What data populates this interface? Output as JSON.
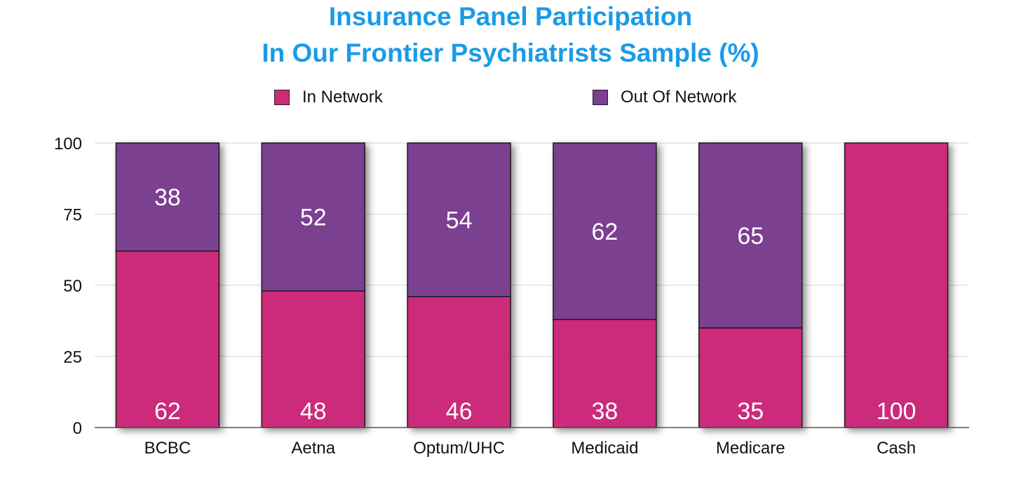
{
  "chart_data": {
    "type": "bar",
    "stacked": true,
    "title": "Insurance Panel Participation",
    "subtitle": "In Our Frontier Psychiatrists Sample (%)",
    "categories": [
      "BCBC",
      "Aetna",
      "Optum/UHC",
      "Medicaid",
      "Medicare",
      "Cash"
    ],
    "series": [
      {
        "name": "In Network",
        "color": "#cc2b7a",
        "values": [
          62,
          48,
          46,
          38,
          35,
          100
        ]
      },
      {
        "name": "Out Of Network",
        "color": "#7b3f90",
        "values": [
          38,
          52,
          54,
          62,
          65,
          0
        ]
      }
    ],
    "y_ticks": [
      "0",
      "25",
      "50",
      "75",
      "100"
    ],
    "ylim": [
      0,
      100
    ],
    "grid": true,
    "legend_position": "top",
    "title_color": "#1a9be6",
    "data_labels": {
      "in_network": [
        "62",
        "48",
        "46",
        "38",
        "35",
        "100"
      ],
      "out_of_network": [
        "38",
        "52",
        "54",
        "62",
        "65",
        ""
      ]
    }
  }
}
